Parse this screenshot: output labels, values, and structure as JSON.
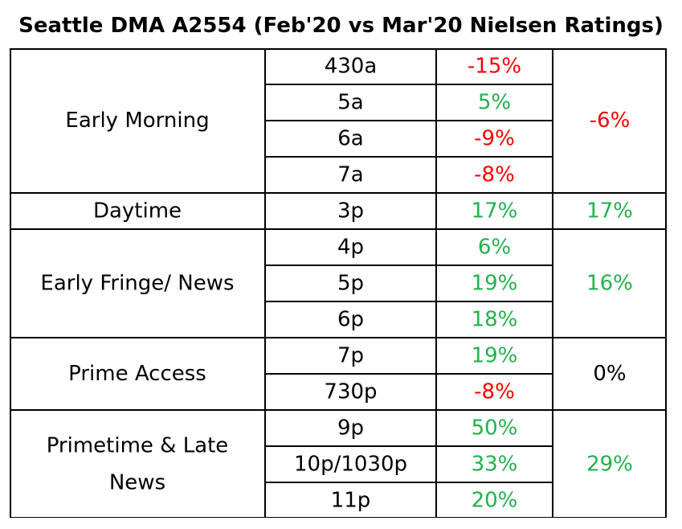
{
  "title": "Seattle DMA A2554 (Feb'20 vs Mar'20 Nielsen Ratings)",
  "colors": {
    "negative": "#ff0000",
    "positive": "#22b14c",
    "neutral": "#000000",
    "border": "#000000"
  },
  "chart_data": {
    "type": "table",
    "title": "Seattle DMA A2554 (Feb'20 vs Mar'20 Nielsen Ratings)",
    "groups": [
      {
        "daypart": "Early Morning",
        "total": "-6%",
        "total_value": -6,
        "rows": [
          {
            "time": "430a",
            "change": "-15%",
            "value": -15
          },
          {
            "time": "5a",
            "change": "5%",
            "value": 5
          },
          {
            "time": "6a",
            "change": "-9%",
            "value": -9
          },
          {
            "time": "7a",
            "change": "-8%",
            "value": -8
          }
        ]
      },
      {
        "daypart": "Daytime",
        "total": "17%",
        "total_value": 17,
        "rows": [
          {
            "time": "3p",
            "change": "17%",
            "value": 17
          }
        ]
      },
      {
        "daypart": "Early Fringe/ News",
        "total": "16%",
        "total_value": 16,
        "rows": [
          {
            "time": "4p",
            "change": "6%",
            "value": 6
          },
          {
            "time": "5p",
            "change": "19%",
            "value": 19
          },
          {
            "time": "6p",
            "change": "18%",
            "value": 18
          }
        ]
      },
      {
        "daypart": "Prime Access",
        "total": "0%",
        "total_value": 0,
        "rows": [
          {
            "time": "7p",
            "change": "19%",
            "value": 19
          },
          {
            "time": "730p",
            "change": "-8%",
            "value": -8
          }
        ]
      },
      {
        "daypart": "Primetime & Late News",
        "daypart_lines": [
          "Primetime & Late",
          "News"
        ],
        "total": "29%",
        "total_value": 29,
        "rows": [
          {
            "time": "9p",
            "change": "50%",
            "value": 50
          },
          {
            "time": "10p/1030p",
            "change": "33%",
            "value": 33
          },
          {
            "time": "11p",
            "change": "20%",
            "value": 20
          }
        ]
      }
    ]
  }
}
